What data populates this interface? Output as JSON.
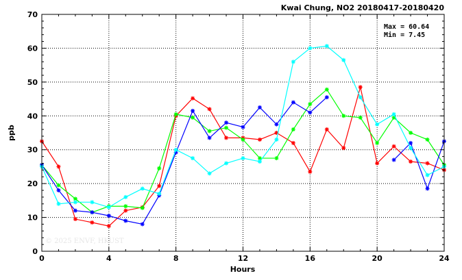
{
  "chart_data": {
    "type": "line",
    "title": "Kwai Chung, NO2 20180417-20180420",
    "xlabel": "Hours",
    "ylabel": "ppb",
    "xlim": [
      0,
      24
    ],
    "ylim": [
      0,
      70
    ],
    "x_ticks": [
      0,
      4,
      8,
      12,
      16,
      20,
      24
    ],
    "y_ticks": [
      0,
      10,
      20,
      30,
      40,
      50,
      60,
      70
    ],
    "grid": true,
    "stats": {
      "max_text": "Max = 60.64",
      "min_text": "Min =  7.45"
    },
    "watermark": "© 2025 ENVF, HKUST",
    "x": [
      0,
      1,
      2,
      3,
      4,
      5,
      6,
      7,
      8,
      9,
      10,
      11,
      12,
      13,
      14,
      15,
      16,
      17,
      18,
      19,
      20,
      21,
      22,
      23,
      24
    ],
    "series": [
      {
        "color": "#ff0000",
        "values": [
          32.5,
          25,
          9.5,
          8.5,
          7.45,
          12,
          13,
          19.3,
          40,
          45.2,
          42,
          33.5,
          33.5,
          33,
          35,
          32,
          23.5,
          36,
          30.5,
          48.5,
          26,
          31,
          26.5,
          26,
          24
        ]
      },
      {
        "color": "#00ff00",
        "values": [
          25.5,
          19.5,
          15.5,
          11.5,
          13.3,
          13.3,
          12.8,
          24.5,
          40.5,
          39.5,
          35.5,
          36.5,
          33,
          27.5,
          27.5,
          36,
          43.5,
          47.8,
          40,
          39.5,
          32,
          39.5,
          35,
          33,
          25.5
        ]
      },
      {
        "color": "#0000ff",
        "values": [
          25.5,
          18,
          12,
          11.5,
          10.5,
          9,
          8,
          16.5,
          29.2,
          41.5,
          33.5,
          38,
          36.7,
          42.5,
          37.5,
          44,
          41,
          45.5,
          null,
          null,
          null,
          27,
          32,
          18.5,
          32.5
        ]
      },
      {
        "color": "#00ffff",
        "values": [
          25,
          14,
          14.5,
          14.5,
          13,
          16,
          18.5,
          17,
          30,
          27.5,
          23,
          26,
          27.5,
          26.5,
          33,
          56,
          60,
          60.64,
          56.5,
          45.5,
          37.5,
          40.5,
          30.5,
          22.5,
          25
        ]
      }
    ]
  }
}
